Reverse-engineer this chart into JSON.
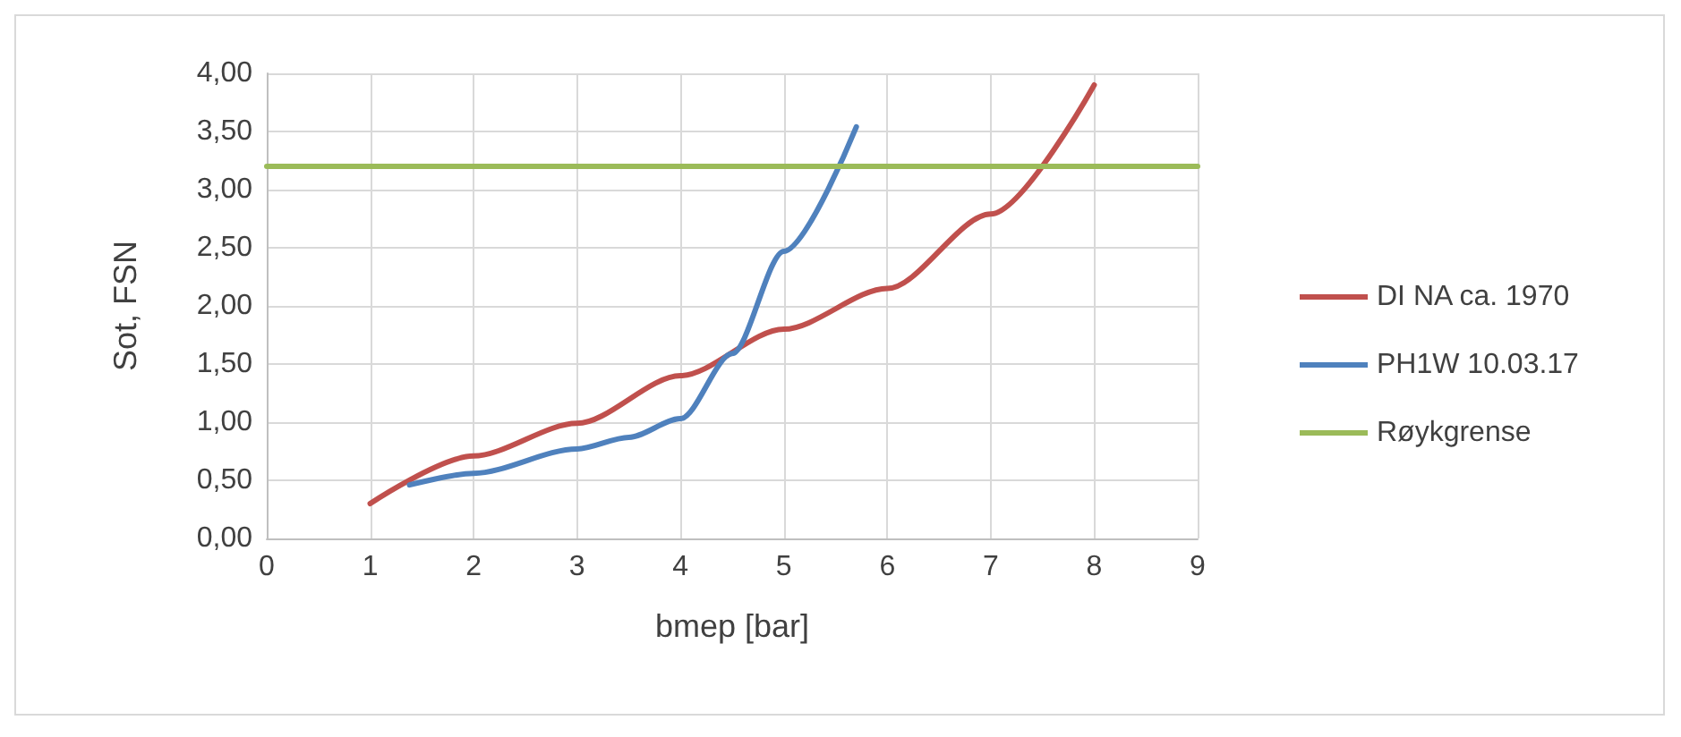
{
  "chart_data": {
    "type": "line",
    "xlabel": "bmep [bar]",
    "ylabel": "Sot, FSN",
    "series": [
      {
        "name": "DI NA ca. 1970",
        "color": "#c0504d",
        "x": [
          1,
          2,
          3,
          4,
          5,
          6,
          7,
          8
        ],
        "values": [
          0.3,
          0.71,
          0.99,
          1.4,
          1.8,
          2.15,
          2.79,
          3.9
        ]
      },
      {
        "name": "PH1W 10.03.17",
        "color": "#4f81bd",
        "x": [
          1.38,
          2,
          3,
          3.5,
          4,
          4.5,
          5,
          5.7
        ],
        "values": [
          0.46,
          0.56,
          0.77,
          0.87,
          1.03,
          1.59,
          2.47,
          3.54
        ]
      },
      {
        "name": "Røykgrense",
        "color": "#9bbb59",
        "x": [
          0,
          9
        ],
        "values": [
          3.2,
          3.2
        ]
      }
    ],
    "xlim": [
      0,
      9
    ],
    "xticks": [
      0,
      1,
      2,
      3,
      4,
      5,
      6,
      7,
      8,
      9
    ],
    "ylim": [
      0,
      4
    ],
    "yticks": [
      {
        "value": 0,
        "label": "0,00"
      },
      {
        "value": 0.5,
        "label": "0,50"
      },
      {
        "value": 1,
        "label": "1,00"
      },
      {
        "value": 1.5,
        "label": "1,50"
      },
      {
        "value": 2,
        "label": "2,00"
      },
      {
        "value": 2.5,
        "label": "2,50"
      },
      {
        "value": 3,
        "label": "3,00"
      },
      {
        "value": 3.5,
        "label": "3,50"
      },
      {
        "value": 4,
        "label": "4,00"
      }
    ],
    "grid": true,
    "legend": "right",
    "marker": "none",
    "line_style": "solid"
  }
}
